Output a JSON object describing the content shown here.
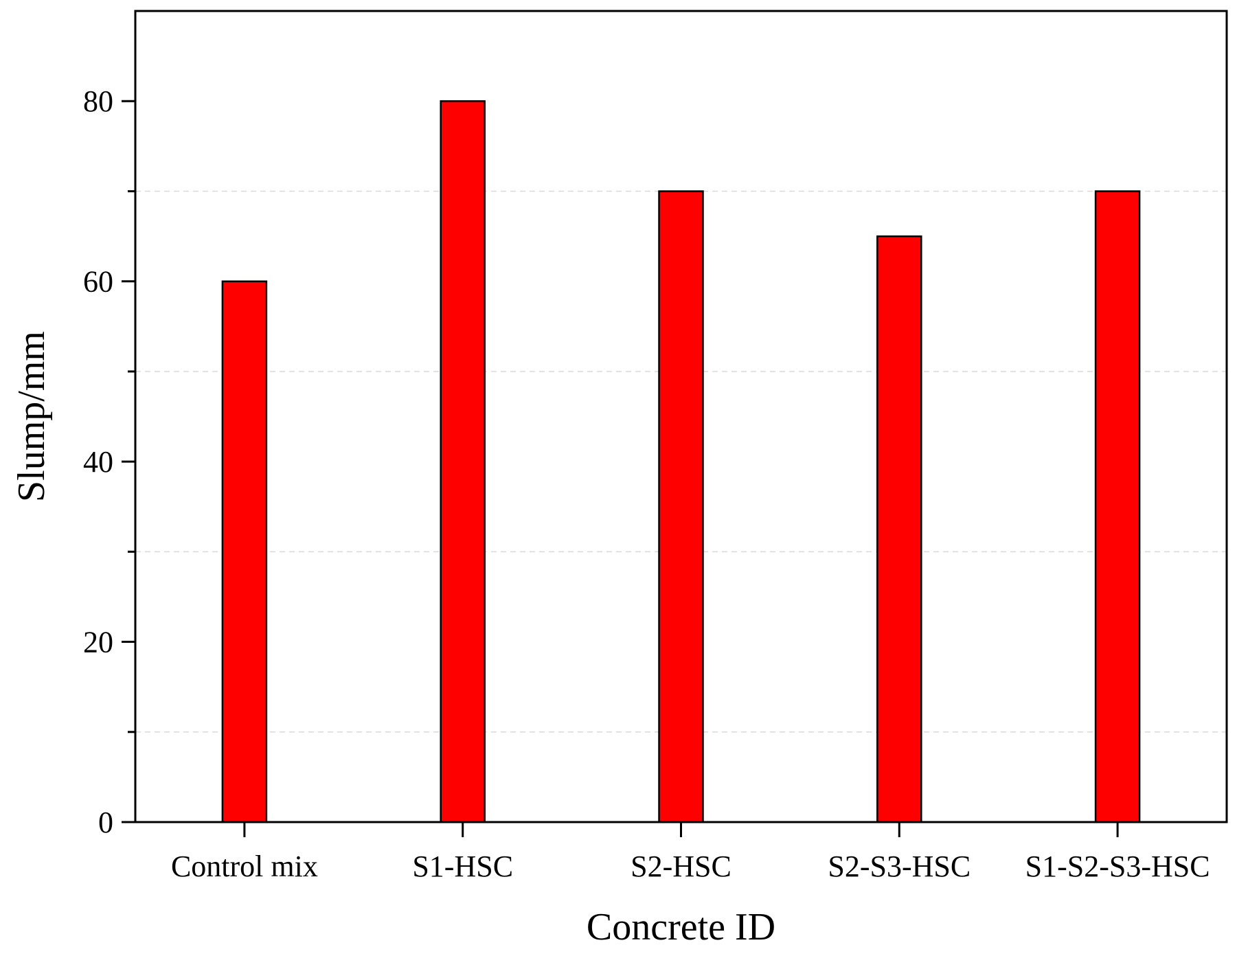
{
  "chart_data": {
    "type": "bar",
    "categories": [
      "Control mix",
      "S1-HSC",
      "S2-HSC",
      "S2-S3-HSC",
      "S1-S2-S3-HSC"
    ],
    "values": [
      60,
      80,
      70,
      65,
      70
    ],
    "xlabel": "Concrete ID",
    "ylabel": "Slump/mm",
    "ylim": [
      0,
      90
    ],
    "yticks": [
      0,
      20,
      40,
      60,
      80
    ],
    "minor_grid": [
      10,
      30,
      50,
      70
    ],
    "grid": "minor dashed horizontal",
    "legend": "none"
  },
  "colors": {
    "bar_fill": "#ff0000",
    "bar_edge": "#000000",
    "axis": "#000000",
    "grid": "#d9d9d9"
  }
}
